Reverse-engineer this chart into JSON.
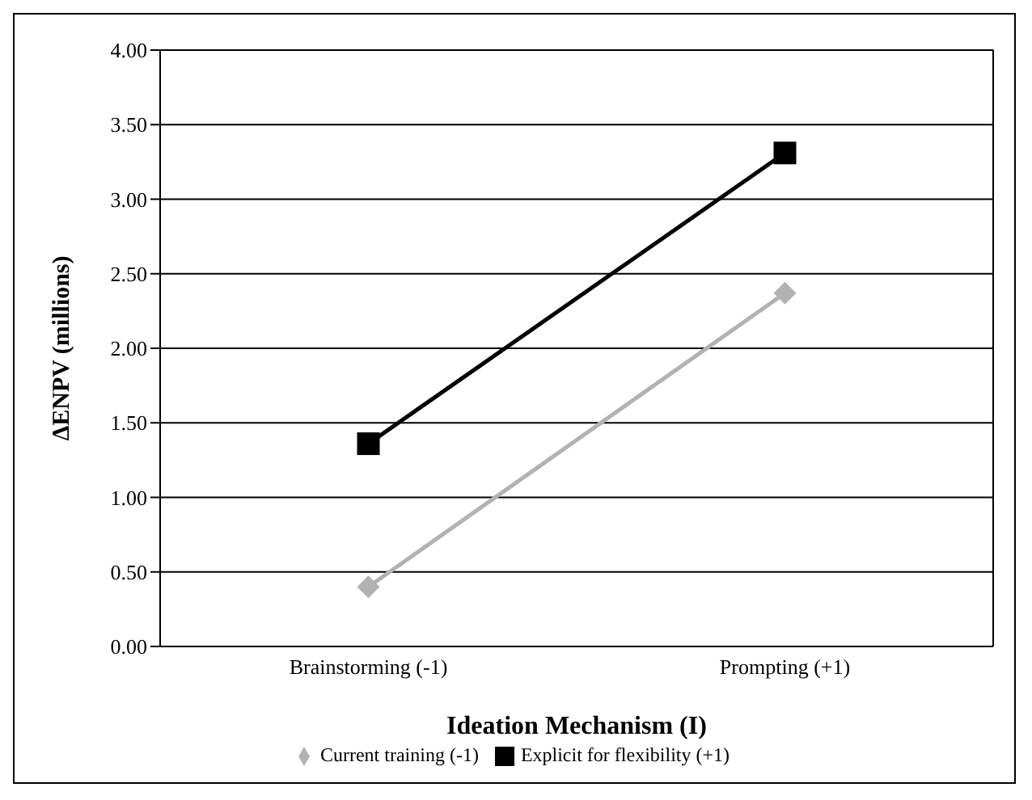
{
  "chart_data": {
    "type": "line",
    "xlabel": "Ideation Mechanism (I)",
    "ylabel": "ΔENPV (millions)",
    "categories": [
      "Brainstorming (-1)",
      "Prompting (+1)"
    ],
    "series": [
      {
        "name": "Current training (-1)",
        "color": "#b2b2b2",
        "values": [
          0.4,
          2.37
        ],
        "marker": "diamond"
      },
      {
        "name": "Explicit for flexibility (+1)",
        "color": "#000000",
        "values": [
          1.36,
          3.31
        ],
        "marker": "square"
      }
    ],
    "ylim": [
      0,
      4
    ],
    "yticks": [
      {
        "value": 0,
        "label": "0.00"
      },
      {
        "value": 0.5,
        "label": "0.50"
      },
      {
        "value": 1,
        "label": "1.00"
      },
      {
        "value": 1.5,
        "label": "1.50"
      },
      {
        "value": 2,
        "label": "2.00"
      },
      {
        "value": 2.5,
        "label": "2.50"
      },
      {
        "value": 3,
        "label": "3.00"
      },
      {
        "value": 3.5,
        "label": "3.50"
      },
      {
        "value": 4,
        "label": "4.00"
      }
    ],
    "grid": "y",
    "legend": "bottom",
    "line_style": "solid"
  }
}
